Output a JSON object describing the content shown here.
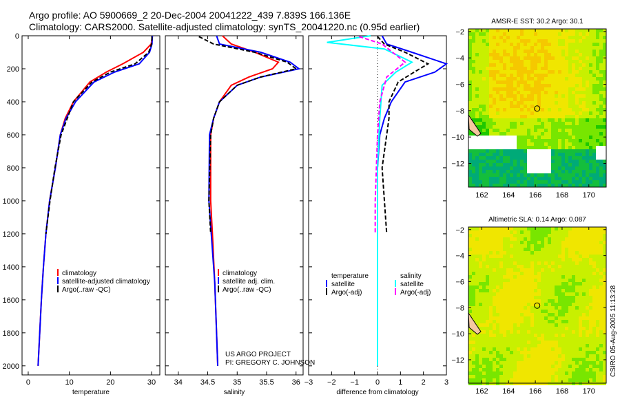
{
  "header": {
    "line1": "Argo profile: AO 5900669_2 20-Dec-2004 20041222_439 7.839S 166.136E",
    "line2": "Climatology: CARS2000. Satellite-adjusted climatology: synTS_20041220.nc (0.95d earlier)"
  },
  "colors": {
    "climatology": "#ff0000",
    "satellite": "#0000ff",
    "argo": "#000000",
    "salinity_satellite": "#00ffff",
    "salinity_argo": "#ff00ff"
  },
  "credit": {
    "line1": "US ARGO PROJECT",
    "line2": "PI: GREGORY C. JOHNSON"
  },
  "timestamp": "CSIRO 05-Aug-2005 11:13:28",
  "chart_data": [
    {
      "type": "line",
      "xlabel": "temperature",
      "ylabel": "",
      "xlim": [
        -1.5,
        32
      ],
      "ylim": [
        2055,
        0
      ],
      "xticks": [
        0,
        10,
        20,
        30
      ],
      "yticks": [
        0,
        200,
        400,
        600,
        800,
        1000,
        1200,
        1400,
        1600,
        1800,
        2000
      ],
      "legend": [
        "climatology",
        "satellite-adjusted climatology",
        "Argo(..raw -QC)"
      ],
      "series": [
        {
          "name": "climatology",
          "color": "#ff0000",
          "x": [
            30.2,
            29.9,
            28,
            23,
            19,
            15,
            11,
            9,
            7.8,
            6.6,
            5.2,
            4.3,
            3.7,
            3.2,
            2.8,
            2.4
          ],
          "y": [
            0,
            50,
            100,
            170,
            220,
            280,
            400,
            500,
            600,
            800,
            1000,
            1200,
            1400,
            1600,
            1800,
            2000
          ]
        },
        {
          "name": "satellite",
          "color": "#0000ff",
          "x": [
            30.2,
            30.1,
            29.5,
            27,
            21,
            16,
            11.5,
            9.2,
            7.8,
            6.6,
            5.2,
            4.3,
            3.7,
            3.2,
            2.8,
            2.4
          ],
          "y": [
            0,
            50,
            100,
            170,
            220,
            280,
            400,
            500,
            600,
            800,
            1000,
            1200,
            1400,
            1600,
            1800,
            2000
          ]
        },
        {
          "name": "argo",
          "color": "#000000",
          "dash": true,
          "x": [
            30.1,
            30,
            29.3,
            26,
            20,
            15.5,
            11,
            9.5,
            8,
            6.5,
            5.3,
            4.3
          ],
          "y": [
            5,
            50,
            100,
            170,
            220,
            280,
            400,
            500,
            600,
            800,
            1000,
            1200
          ]
        }
      ]
    },
    {
      "type": "line",
      "xlabel": "salinity",
      "ylabel": "",
      "xlim": [
        33.78,
        36.12
      ],
      "ylim": [
        2055,
        0
      ],
      "xticks": [
        34,
        34.5,
        35,
        35.5,
        36
      ],
      "legend": [
        "climatology",
        "satellite adj. clim.",
        "Argo(..raw -QC)"
      ],
      "series": [
        {
          "name": "climatology",
          "color": "#ff0000",
          "x": [
            34.75,
            34.9,
            35.3,
            35.7,
            35.6,
            35.2,
            34.9,
            34.7,
            34.6,
            34.55,
            34.55,
            34.58,
            34.62,
            34.67
          ],
          "y": [
            0,
            50,
            100,
            160,
            200,
            250,
            300,
            400,
            500,
            600,
            1000,
            1200,
            1500,
            2000
          ]
        },
        {
          "name": "satellite",
          "color": "#0000ff",
          "x": [
            34.65,
            34.7,
            35.4,
            35.9,
            36.05,
            35.4,
            35.0,
            34.7,
            34.6,
            34.53,
            34.52,
            34.56,
            34.62,
            34.67
          ],
          "y": [
            0,
            50,
            100,
            160,
            200,
            250,
            300,
            400,
            500,
            600,
            1000,
            1200,
            1500,
            2000
          ]
        },
        {
          "name": "argo",
          "color": "#000000",
          "dash": true,
          "x": [
            34.35,
            34.6,
            35.3,
            35.85,
            36.0,
            35.4,
            35.0,
            34.7,
            34.6,
            34.55,
            34.52,
            34.55
          ],
          "y": [
            5,
            50,
            100,
            160,
            200,
            250,
            300,
            400,
            500,
            600,
            1000,
            1200
          ]
        }
      ]
    },
    {
      "type": "line",
      "xlabel": "difference from climatology",
      "ylabel": "",
      "xlim": [
        -3,
        3
      ],
      "ylim": [
        2055,
        0
      ],
      "xticks": [
        -3,
        -2,
        -1,
        0,
        1,
        2,
        3
      ],
      "legend_temperature": {
        "title": "temperature",
        "items": [
          "satellite",
          "Argo(-adj)"
        ]
      },
      "legend_salinity": {
        "title": "salinity",
        "items": [
          "satellite",
          "Argo(-adj)"
        ]
      },
      "series": [
        {
          "name": "temperature satellite",
          "color": "#0000ff",
          "x": [
            0.2,
            0.4,
            1.5,
            3,
            2.5,
            1.2,
            0.6,
            0.3,
            0.1,
            0,
            0,
            0
          ],
          "y": [
            0,
            50,
            100,
            170,
            220,
            280,
            400,
            500,
            600,
            800,
            1200,
            2000
          ]
        },
        {
          "name": "temperature Argo(-adj)",
          "color": "#000000",
          "dash": true,
          "x": [
            0,
            0.3,
            1.2,
            2.2,
            1.6,
            0.9,
            0.5,
            0.5,
            0.4,
            0.2,
            0.3,
            0.4
          ],
          "y": [
            5,
            50,
            100,
            170,
            220,
            280,
            400,
            500,
            600,
            800,
            1000,
            1200
          ]
        },
        {
          "name": "salinity satellite",
          "color": "#00ffff",
          "x": [
            -0.3,
            -2.2,
            0.3,
            1.5,
            0.8,
            0.2,
            0.1,
            0,
            0,
            0
          ],
          "y": [
            0,
            40,
            80,
            160,
            220,
            300,
            500,
            800,
            1200,
            2000
          ]
        },
        {
          "name": "salinity Argo(-adj)",
          "color": "#ff00ff",
          "dash": true,
          "x": [
            -0.8,
            0.2,
            1.2,
            0.4,
            0.1,
            0,
            -0.1,
            -0.1
          ],
          "y": [
            5,
            50,
            160,
            250,
            400,
            600,
            1000,
            1200
          ]
        }
      ]
    },
    {
      "type": "heatmap",
      "title": "AMSR-E SST: 30.2 Argo: 30.1",
      "xticks": [
        162,
        164,
        166,
        168,
        170
      ],
      "yticks": [
        -2,
        -4,
        -6,
        -8,
        -10,
        -12
      ],
      "xlim": [
        161,
        171.3
      ],
      "ylim": [
        -13.8,
        -1.8
      ],
      "float_position": [
        166.136,
        -7.839
      ]
    },
    {
      "type": "heatmap",
      "title": "Altimetric SLA: 0.14 Argo: 0.087",
      "xticks": [
        162,
        164,
        166,
        168,
        170
      ],
      "yticks": [
        -2,
        -4,
        -6,
        -8,
        -10,
        -12
      ],
      "xlim": [
        161,
        171.3
      ],
      "ylim": [
        -13.8,
        -1.8
      ],
      "float_position": [
        166.136,
        -7.839
      ]
    }
  ]
}
